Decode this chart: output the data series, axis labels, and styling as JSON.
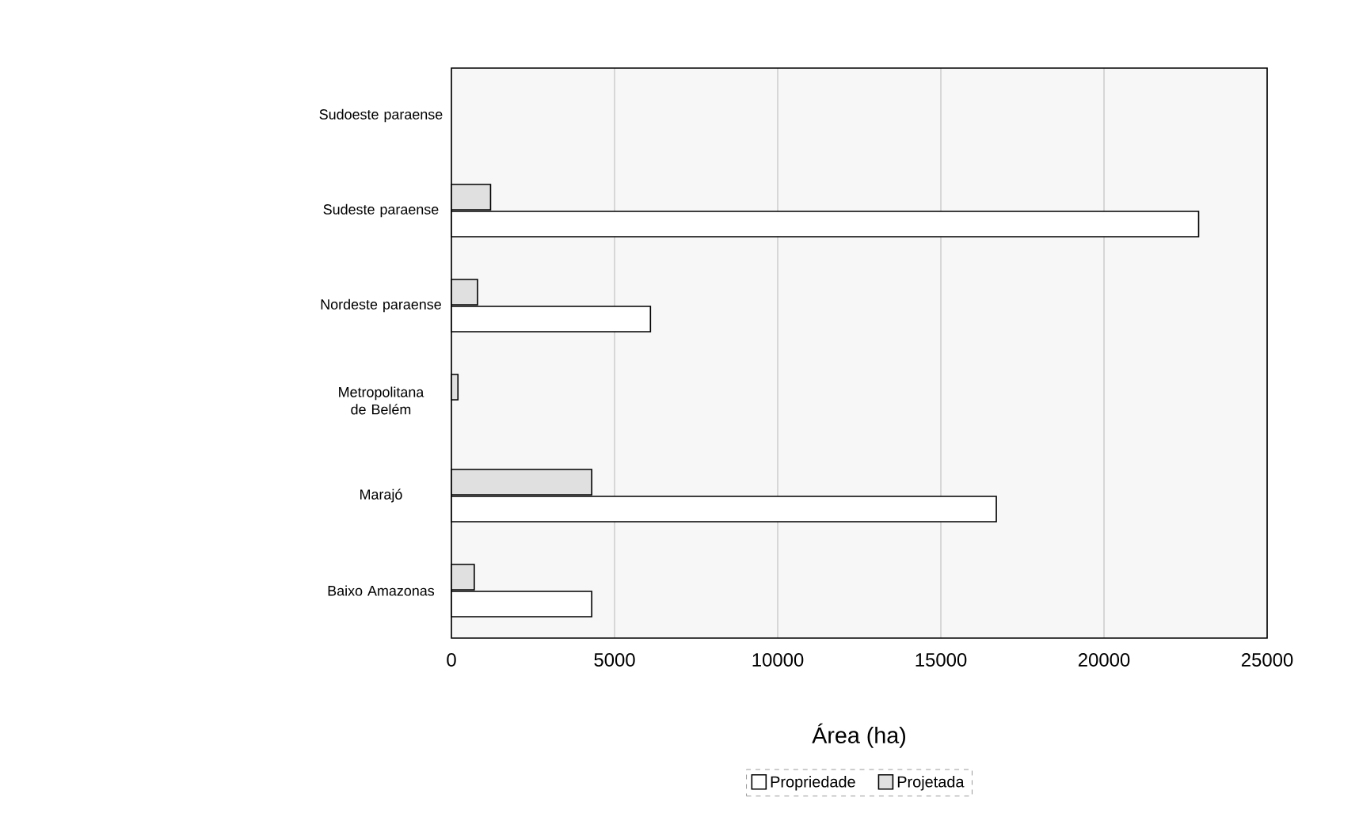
{
  "chart_data": {
    "type": "bar",
    "orientation": "horizontal",
    "categories": [
      "Sudoeste paraense",
      "Sudeste paraense",
      "Nordeste paraense",
      "Metropolitana de Belém",
      "Marajó",
      "Baixo Amazonas"
    ],
    "series": [
      {
        "name": "Propriedade",
        "color": "#ffffff",
        "values": [
          null,
          22900,
          6100,
          null,
          16700,
          4300
        ]
      },
      {
        "name": "Projetada",
        "color": "#e0e0e0",
        "values": [
          null,
          1200,
          800,
          200,
          4300,
          700
        ]
      }
    ],
    "xlabel": "Área (ha)",
    "xlim": [
      0,
      25000
    ],
    "xticks": [
      0,
      5000,
      10000,
      15000,
      20000,
      25000
    ],
    "grid": "x",
    "legend": "bottom"
  }
}
